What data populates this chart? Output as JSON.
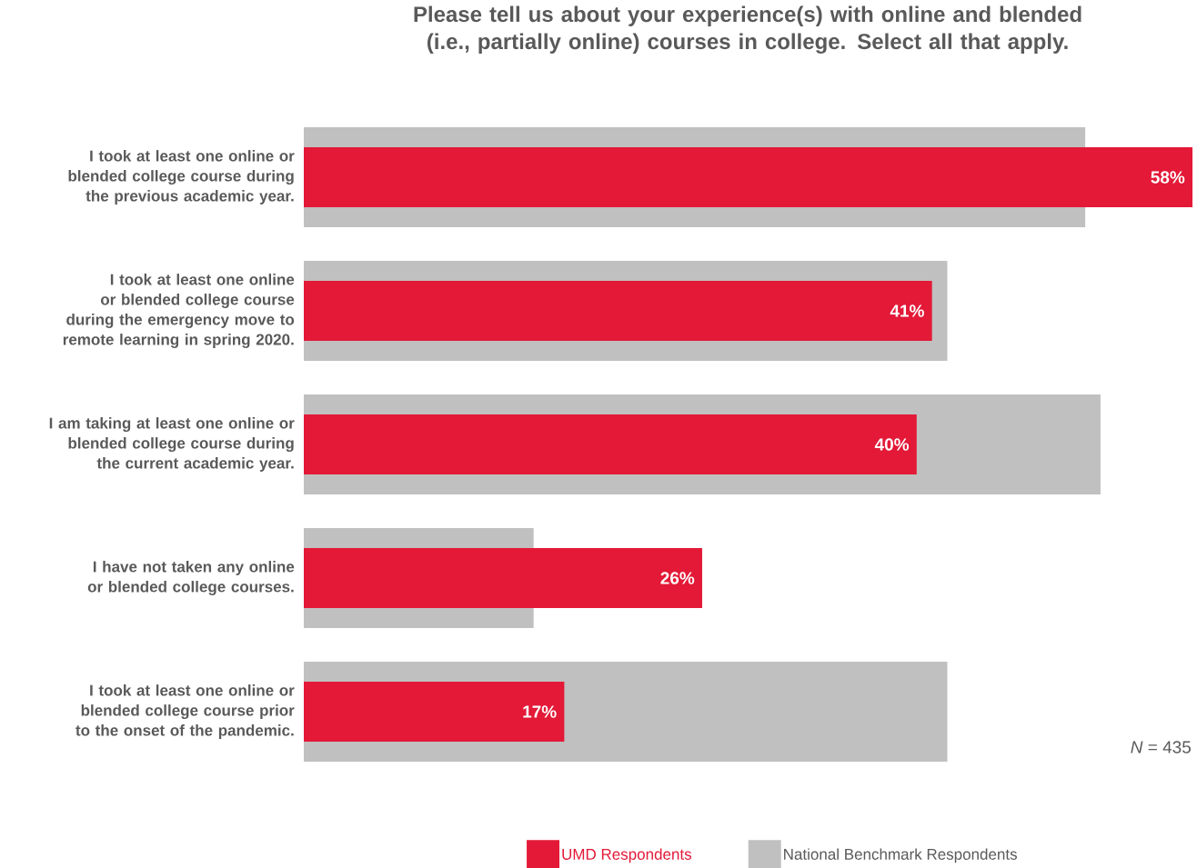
{
  "chart_data": {
    "type": "bar",
    "orientation": "horizontal",
    "title": "Please tell us about your experience(s) with online and blended (i.e., partially online) courses in college. Select all that apply.",
    "categories": [
      "I took at least one online or blended college course during the previous academic year.",
      "I took at least one online or blended college course during the emergency move to remote learning in spring 2020.",
      "I am taking at least one online or blended college course during the current academic year.",
      "I have not taken any online or blended college courses.",
      "I took at least one online or blended college course prior to the onset of the pandemic."
    ],
    "series": [
      {
        "name": "UMD Respondents",
        "color": "#e31937",
        "values": [
          58,
          41,
          40,
          26,
          17
        ],
        "value_labels": [
          "58%",
          "41%",
          "40%",
          "26%",
          "17%"
        ]
      },
      {
        "name": "National Benchmark Respondents",
        "color": "#c0c0c0",
        "values": [
          51,
          42,
          52,
          15,
          42
        ]
      }
    ],
    "annotations": [
      "*N* = 435"
    ],
    "legend": "bottom"
  }
}
